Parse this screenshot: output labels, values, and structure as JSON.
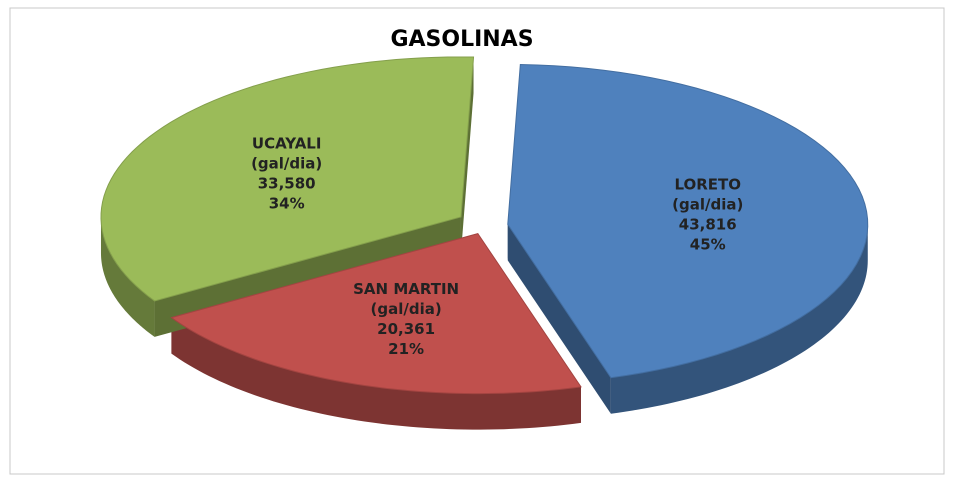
{
  "chart_data": {
    "type": "pie",
    "title": "GASOLINAS",
    "categories": [
      "LORETO",
      "SAN MARTIN",
      "UCAYALI"
    ],
    "unit_label": "(gal/dia)",
    "values": [
      43816,
      20361,
      33580
    ],
    "value_labels": [
      "43,816",
      "20,361",
      "33,580"
    ],
    "percentages": [
      45,
      21,
      34
    ],
    "percentage_labels": [
      "45%",
      "21%",
      "34%"
    ],
    "colors": [
      "#4f81bd",
      "#c0504d",
      "#9bbb59"
    ]
  }
}
